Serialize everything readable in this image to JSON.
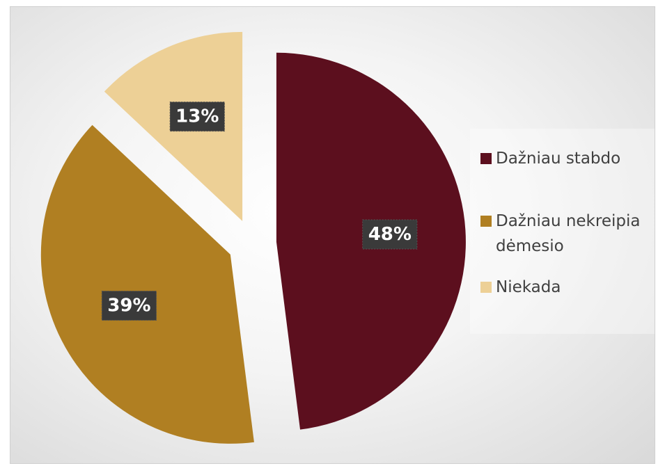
{
  "chart_data": {
    "type": "pie",
    "categories": [
      "Dažniau stabdo",
      "Dažniau nekreipia dėmesio",
      "Niekada"
    ],
    "values": [
      48,
      39,
      13
    ],
    "value_labels": [
      "48%",
      "39%",
      "13%"
    ],
    "colors": [
      "#5c0f1e",
      "#b07f22",
      "#edd096"
    ],
    "legend": "right"
  }
}
